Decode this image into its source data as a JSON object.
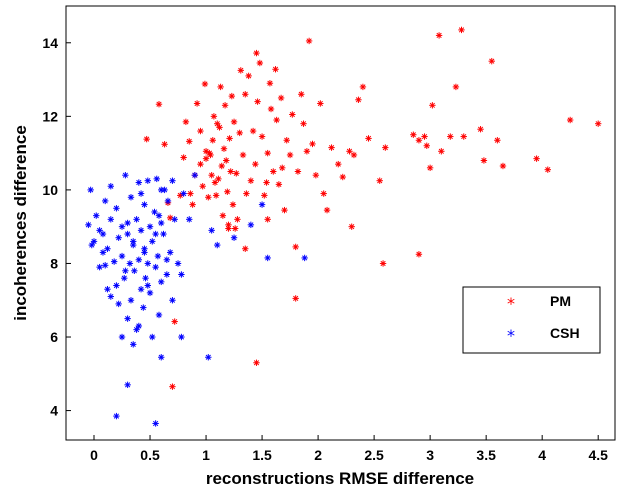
{
  "chart_data": {
    "type": "scatter",
    "title": "",
    "xlabel": "reconstructions RMSE difference",
    "ylabel": "incoherences difference",
    "xlim": [
      -0.25,
      4.65
    ],
    "ylim": [
      3.2,
      15.0
    ],
    "x_ticks": [
      "0",
      "0.5",
      "1",
      "1.5",
      "2",
      "2.5",
      "3",
      "3.5",
      "4",
      "4.5"
    ],
    "y_ticks": [
      "4",
      "6",
      "8",
      "10",
      "12",
      "14"
    ],
    "grid": false,
    "legend_position": "right",
    "marker": "*",
    "series": [
      {
        "name": "PM",
        "color": "#ff0000",
        "points": [
          [
            0.47,
            11.38
          ],
          [
            0.58,
            12.33
          ],
          [
            0.63,
            11.24
          ],
          [
            0.66,
            9.65
          ],
          [
            0.68,
            9.24
          ],
          [
            0.72,
            6.42
          ],
          [
            0.7,
            4.65
          ],
          [
            0.77,
            9.85
          ],
          [
            0.8,
            10.88
          ],
          [
            0.82,
            11.85
          ],
          [
            0.85,
            11.32
          ],
          [
            0.86,
            9.9
          ],
          [
            0.88,
            9.6
          ],
          [
            0.9,
            10.4
          ],
          [
            0.92,
            12.35
          ],
          [
            0.95,
            11.6
          ],
          [
            0.97,
            10.1
          ],
          [
            0.99,
            12.88
          ],
          [
            1.0,
            10.85
          ],
          [
            1.02,
            9.8
          ],
          [
            1.03,
            11.0
          ],
          [
            1.04,
            10.95
          ],
          [
            1.05,
            10.4
          ],
          [
            1.06,
            11.35
          ],
          [
            1.07,
            12.0
          ],
          [
            1.08,
            10.2
          ],
          [
            1.09,
            9.85
          ],
          [
            1.1,
            11.8
          ],
          [
            1.11,
            10.3
          ],
          [
            1.12,
            11.7
          ],
          [
            1.13,
            12.8
          ],
          [
            1.14,
            10.65
          ],
          [
            1.15,
            9.3
          ],
          [
            1.16,
            11.12
          ],
          [
            1.17,
            12.3
          ],
          [
            1.18,
            10.8
          ],
          [
            1.19,
            9.95
          ],
          [
            1.2,
            8.95
          ],
          [
            1.21,
            11.4
          ],
          [
            1.22,
            10.5
          ],
          [
            1.23,
            12.55
          ],
          [
            1.24,
            9.6
          ],
          [
            1.25,
            11.85
          ],
          [
            1.27,
            10.45
          ],
          [
            1.28,
            9.2
          ],
          [
            1.3,
            11.55
          ],
          [
            1.31,
            13.25
          ],
          [
            1.33,
            10.95
          ],
          [
            1.35,
            12.6
          ],
          [
            1.36,
            9.9
          ],
          [
            1.38,
            13.1
          ],
          [
            1.4,
            10.25
          ],
          [
            1.42,
            11.6
          ],
          [
            1.44,
            10.7
          ],
          [
            1.45,
            13.72
          ],
          [
            1.46,
            12.4
          ],
          [
            1.48,
            13.45
          ],
          [
            1.5,
            11.45
          ],
          [
            1.52,
            9.85
          ],
          [
            1.54,
            10.2
          ],
          [
            1.55,
            11.0
          ],
          [
            1.57,
            12.9
          ],
          [
            1.58,
            12.2
          ],
          [
            1.6,
            10.5
          ],
          [
            1.62,
            13.28
          ],
          [
            1.63,
            11.9
          ],
          [
            1.65,
            10.15
          ],
          [
            1.67,
            12.5
          ],
          [
            1.7,
            9.45
          ],
          [
            1.72,
            11.35
          ],
          [
            1.75,
            10.95
          ],
          [
            1.77,
            12.05
          ],
          [
            1.8,
            8.45
          ],
          [
            1.82,
            10.5
          ],
          [
            1.85,
            12.6
          ],
          [
            1.87,
            11.8
          ],
          [
            1.9,
            11.05
          ],
          [
            1.92,
            14.05
          ],
          [
            1.95,
            11.25
          ],
          [
            1.98,
            10.4
          ],
          [
            2.02,
            12.35
          ],
          [
            2.05,
            9.9
          ],
          [
            2.08,
            9.45
          ],
          [
            2.12,
            11.15
          ],
          [
            2.18,
            10.7
          ],
          [
            2.22,
            10.35
          ],
          [
            2.28,
            11.05
          ],
          [
            2.32,
            10.95
          ],
          [
            2.36,
            12.45
          ],
          [
            2.4,
            12.8
          ],
          [
            2.45,
            11.4
          ],
          [
            2.6,
            11.15
          ],
          [
            2.85,
            11.5
          ],
          [
            2.9,
            11.35
          ],
          [
            2.95,
            11.45
          ],
          [
            2.97,
            11.2
          ],
          [
            3.0,
            10.6
          ],
          [
            3.02,
            12.3
          ],
          [
            3.08,
            14.2
          ],
          [
            3.18,
            11.45
          ],
          [
            3.23,
            12.8
          ],
          [
            3.28,
            14.35
          ],
          [
            3.3,
            11.45
          ],
          [
            3.45,
            11.65
          ],
          [
            3.48,
            10.8
          ],
          [
            3.55,
            13.5
          ],
          [
            3.6,
            11.35
          ],
          [
            3.65,
            10.65
          ],
          [
            3.95,
            10.85
          ],
          [
            4.05,
            10.55
          ],
          [
            4.25,
            11.9
          ],
          [
            4.5,
            11.8
          ],
          [
            1.45,
            5.3
          ],
          [
            1.8,
            7.05
          ],
          [
            2.58,
            8.0
          ],
          [
            2.9,
            8.25
          ],
          [
            1.0,
            11.05
          ],
          [
            1.2,
            9.05
          ],
          [
            0.95,
            10.7
          ],
          [
            1.35,
            8.4
          ],
          [
            1.55,
            9.2
          ],
          [
            2.3,
            9.0
          ],
          [
            2.55,
            10.25
          ],
          [
            3.1,
            11.05
          ],
          [
            1.68,
            10.6
          ],
          [
            1.26,
            8.95
          ]
        ]
      },
      {
        "name": "CSH",
        "color": "#0000ff",
        "points": [
          [
            -0.05,
            9.05
          ],
          [
            -0.03,
            10.0
          ],
          [
            -0.02,
            8.5
          ],
          [
            0.0,
            8.6
          ],
          [
            0.02,
            9.3
          ],
          [
            0.05,
            7.9
          ],
          [
            0.08,
            8.8
          ],
          [
            0.1,
            7.95
          ],
          [
            0.12,
            8.4
          ],
          [
            0.15,
            10.1
          ],
          [
            0.15,
            7.1
          ],
          [
            0.18,
            8.05
          ],
          [
            0.2,
            9.5
          ],
          [
            0.2,
            7.4
          ],
          [
            0.22,
            6.9
          ],
          [
            0.22,
            8.7
          ],
          [
            0.25,
            8.2
          ],
          [
            0.25,
            9.0
          ],
          [
            0.27,
            7.6
          ],
          [
            0.28,
            10.4
          ],
          [
            0.3,
            8.8
          ],
          [
            0.3,
            6.5
          ],
          [
            0.32,
            8.0
          ],
          [
            0.33,
            9.8
          ],
          [
            0.33,
            7.0
          ],
          [
            0.35,
            8.5
          ],
          [
            0.35,
            5.8
          ],
          [
            0.36,
            7.8
          ],
          [
            0.38,
            9.2
          ],
          [
            0.38,
            6.2
          ],
          [
            0.4,
            8.1
          ],
          [
            0.4,
            10.2
          ],
          [
            0.42,
            7.3
          ],
          [
            0.42,
            8.9
          ],
          [
            0.44,
            6.8
          ],
          [
            0.45,
            8.4
          ],
          [
            0.45,
            9.6
          ],
          [
            0.46,
            7.6
          ],
          [
            0.48,
            10.25
          ],
          [
            0.48,
            8.0
          ],
          [
            0.5,
            9.0
          ],
          [
            0.5,
            7.2
          ],
          [
            0.52,
            8.6
          ],
          [
            0.52,
            6.0
          ],
          [
            0.54,
            9.4
          ],
          [
            0.55,
            7.9
          ],
          [
            0.56,
            10.3
          ],
          [
            0.57,
            8.2
          ],
          [
            0.58,
            6.6
          ],
          [
            0.6,
            9.1
          ],
          [
            0.6,
            7.5
          ],
          [
            0.62,
            8.8
          ],
          [
            0.63,
            10.0
          ],
          [
            0.65,
            7.7
          ],
          [
            0.66,
            9.7
          ],
          [
            0.68,
            8.3
          ],
          [
            0.7,
            7.0
          ],
          [
            0.72,
            9.2
          ],
          [
            0.75,
            8.0
          ],
          [
            0.78,
            7.7
          ],
          [
            0.8,
            9.9
          ],
          [
            0.85,
            9.2
          ],
          [
            0.9,
            10.4
          ],
          [
            1.05,
            8.9
          ],
          [
            1.1,
            8.5
          ],
          [
            1.25,
            8.7
          ],
          [
            1.4,
            9.05
          ],
          [
            1.5,
            9.6
          ],
          [
            1.55,
            8.15
          ],
          [
            1.88,
            8.15
          ],
          [
            0.2,
            3.85
          ],
          [
            0.3,
            4.7
          ],
          [
            0.55,
            3.65
          ],
          [
            1.02,
            5.45
          ],
          [
            0.6,
            5.45
          ],
          [
            0.78,
            6.0
          ],
          [
            0.4,
            6.3
          ],
          [
            0.25,
            6.0
          ],
          [
            0.12,
            7.3
          ],
          [
            0.08,
            8.3
          ],
          [
            0.45,
            8.3
          ],
          [
            0.35,
            8.6
          ],
          [
            0.28,
            7.8
          ],
          [
            0.55,
            8.8
          ],
          [
            0.65,
            8.1
          ],
          [
            0.48,
            7.4
          ],
          [
            0.15,
            9.2
          ],
          [
            0.05,
            8.9
          ],
          [
            0.1,
            9.7
          ],
          [
            0.3,
            9.1
          ],
          [
            0.42,
            9.9
          ],
          [
            0.6,
            10.0
          ],
          [
            0.7,
            10.25
          ],
          [
            0.58,
            9.3
          ]
        ]
      }
    ]
  },
  "legend": {
    "items": [
      {
        "label": "PM",
        "color": "#ff0000"
      },
      {
        "label": "CSH",
        "color": "#0000ff"
      }
    ]
  }
}
